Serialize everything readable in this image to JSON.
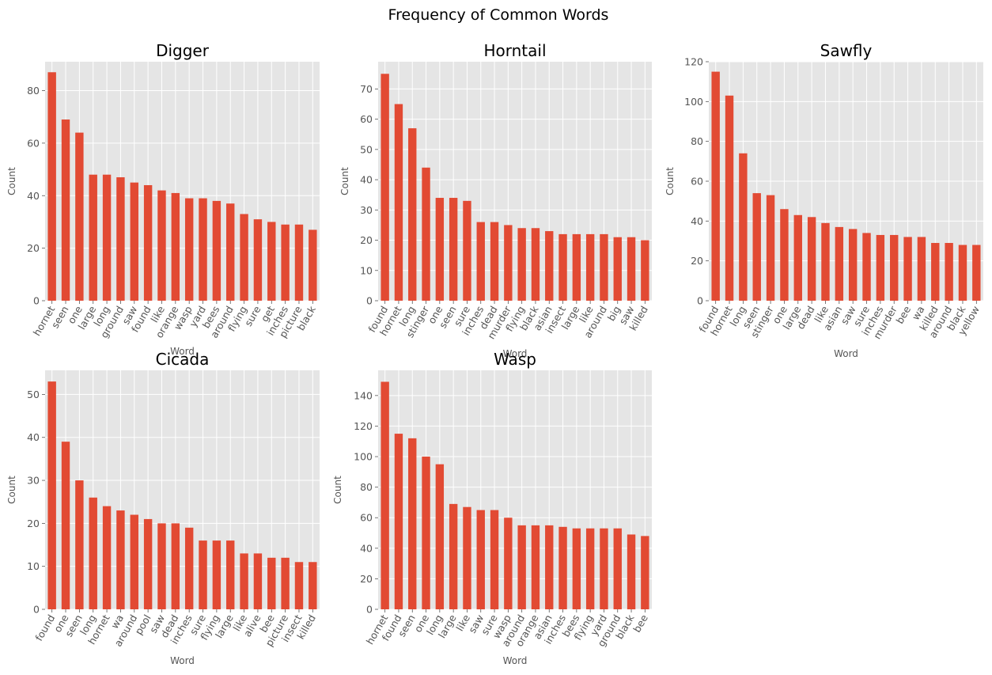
{
  "figure_title": "Frequency of Common Words",
  "chart_data": [
    {
      "type": "bar",
      "title": "Digger",
      "xlabel": "Word",
      "ylabel": "Count",
      "ylim": [
        0,
        91
      ],
      "yticks": [
        0,
        20,
        40,
        60,
        80
      ],
      "grid": true,
      "categories": [
        "hornet",
        "seen",
        "one",
        "large",
        "long",
        "ground",
        "saw",
        "found",
        "like",
        "orange",
        "wasp",
        "yard",
        "bees",
        "around",
        "flying",
        "sure",
        "get",
        "inches",
        "picture",
        "black"
      ],
      "values": [
        87,
        69,
        64,
        48,
        48,
        47,
        45,
        44,
        42,
        41,
        39,
        39,
        38,
        37,
        33,
        31,
        30,
        29,
        29,
        27
      ]
    },
    {
      "type": "bar",
      "title": "Horntail",
      "xlabel": "Word",
      "ylabel": "Count",
      "ylim": [
        0,
        79
      ],
      "yticks": [
        0,
        10,
        20,
        30,
        40,
        50,
        60,
        70
      ],
      "grid": true,
      "categories": [
        "found",
        "hornet",
        "long",
        "stinger",
        "one",
        "seen",
        "sure",
        "inches",
        "dead",
        "murder",
        "flying",
        "black",
        "asian",
        "insect",
        "large",
        "like",
        "around",
        "big",
        "saw",
        "killed"
      ],
      "values": [
        75,
        65,
        57,
        44,
        34,
        34,
        33,
        26,
        26,
        25,
        24,
        24,
        23,
        22,
        22,
        22,
        22,
        21,
        21,
        20
      ]
    },
    {
      "type": "bar",
      "title": "Sawfly",
      "xlabel": "Word",
      "ylabel": "Count",
      "ylim": [
        0,
        120
      ],
      "yticks": [
        0,
        20,
        40,
        60,
        80,
        100,
        120
      ],
      "grid": true,
      "categories": [
        "found",
        "hornet",
        "long",
        "seen",
        "stinger",
        "one",
        "large",
        "dead",
        "like",
        "asian",
        "saw",
        "sure",
        "inches",
        "murder",
        "bee",
        "wa",
        "killed",
        "around",
        "black",
        "yellow"
      ],
      "values": [
        115,
        103,
        74,
        54,
        53,
        46,
        43,
        42,
        39,
        37,
        36,
        34,
        33,
        33,
        32,
        32,
        29,
        29,
        28,
        28
      ]
    },
    {
      "type": "bar",
      "title": "Cicada",
      "xlabel": "Word",
      "ylabel": "Count",
      "ylim": [
        0,
        55.6
      ],
      "yticks": [
        0,
        10,
        20,
        30,
        40,
        50
      ],
      "grid": true,
      "categories": [
        "found",
        "one",
        "seen",
        "long",
        "hornet",
        "wa",
        "around",
        "pool",
        "saw",
        "dead",
        "inches",
        "sure",
        "flying",
        "large",
        "like",
        "alive",
        "bee",
        "picture",
        "insect",
        "killed"
      ],
      "values": [
        53,
        39,
        30,
        26,
        24,
        23,
        22,
        21,
        20,
        20,
        19,
        16,
        16,
        16,
        13,
        13,
        12,
        12,
        11,
        11
      ]
    },
    {
      "type": "bar",
      "title": "Wasp",
      "xlabel": "Word",
      "ylabel": "Count",
      "ylim": [
        0,
        156.5
      ],
      "yticks": [
        0,
        20,
        40,
        60,
        80,
        100,
        120,
        140
      ],
      "grid": true,
      "categories": [
        "hornet",
        "found",
        "seen",
        "one",
        "long",
        "large",
        "like",
        "saw",
        "sure",
        "wasp",
        "around",
        "orange",
        "asian",
        "inches",
        "bees",
        "flying",
        "yard",
        "ground",
        "black",
        "bee"
      ],
      "values": [
        149,
        115,
        112,
        100,
        95,
        69,
        67,
        65,
        65,
        60,
        55,
        55,
        55,
        54,
        53,
        53,
        53,
        53,
        49,
        48
      ]
    }
  ]
}
